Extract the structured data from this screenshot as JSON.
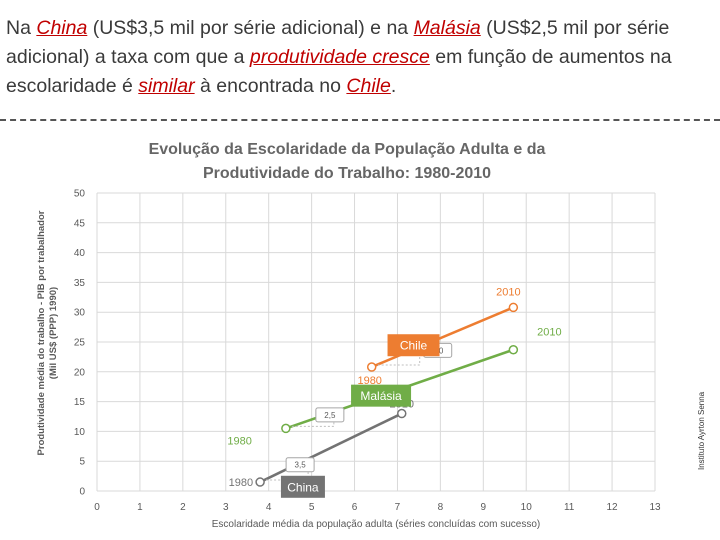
{
  "headline": {
    "p1": "Na ",
    "china": "China",
    "p2": " (US$3,5 mil por série adicional) e na ",
    "malasia": "Malásia",
    "p3": " (US$2,5 mil por série adicional) a taxa com que a ",
    "produtividade": "produtividade cresce",
    "p4": " em função de aumentos na escolaridade é ",
    "similar": "similar",
    "p5": " à encontrada no ",
    "chile": "Chile",
    "p6": "."
  },
  "watermark": "Instituto Ayrton Senna",
  "chart_data": {
    "type": "line",
    "title": [
      "Evolução da Escolaridade da População Adulta e da",
      "Produtividade do Trabalho: 1980-2010"
    ],
    "xlabel": "Escolaridade média da população adulta (séries concluídas com sucesso)",
    "ylabel": [
      "Produtividade média do trabalho - PIB por trabalhador",
      "(Mil US$ (PPP) 1990)"
    ],
    "xlim": [
      0,
      13
    ],
    "ylim": [
      0,
      50
    ],
    "xticks": [
      0,
      1,
      2,
      3,
      4,
      5,
      6,
      7,
      8,
      9,
      10,
      11,
      12,
      13
    ],
    "yticks": [
      0,
      5,
      10,
      15,
      20,
      25,
      30,
      35,
      40,
      45,
      50
    ],
    "grid": true,
    "series": [
      {
        "name": "China",
        "color": "#737373",
        "points": [
          {
            "x": 3.8,
            "y": 1.5,
            "label": "1980"
          },
          {
            "x": 7.1,
            "y": 13.0,
            "label": "2010"
          }
        ],
        "slope_label": "3,5"
      },
      {
        "name": "Malásia",
        "color": "#70ad47",
        "points": [
          {
            "x": 4.4,
            "y": 10.5,
            "label": "1980"
          },
          {
            "x": 9.7,
            "y": 23.7,
            "label": "2010"
          }
        ],
        "slope_label": "2,5"
      },
      {
        "name": "Chile",
        "color": "#ed7d31",
        "points": [
          {
            "x": 6.4,
            "y": 20.8,
            "label": "1980"
          },
          {
            "x": 9.7,
            "y": 30.8,
            "label": "2010"
          }
        ],
        "slope_label": "3,0"
      }
    ]
  }
}
